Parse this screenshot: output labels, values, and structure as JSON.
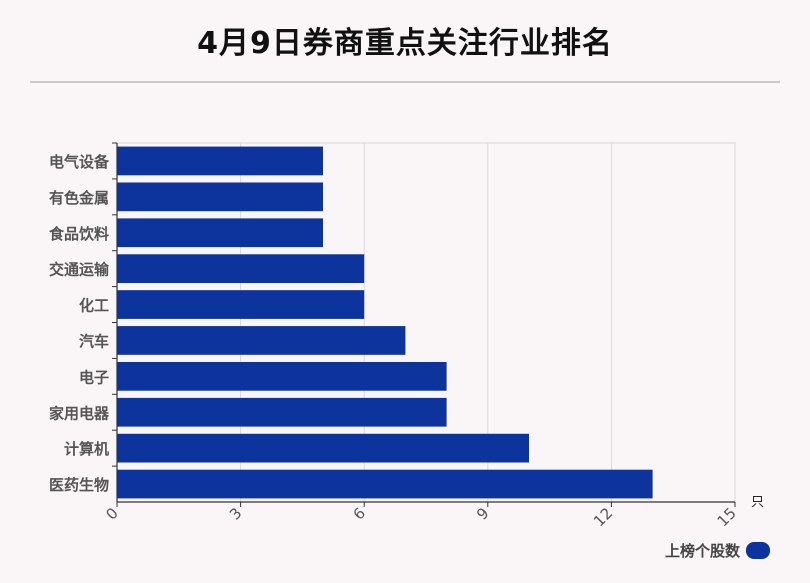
{
  "title": "4月9日券商重点关注行业排名",
  "colors": {
    "bar": "#0c349c",
    "grid": "#d9d9d9",
    "axis": "#555555"
  },
  "chart_data": {
    "type": "bar",
    "orientation": "horizontal",
    "categories": [
      "电气设备",
      "有色金属",
      "食品饮料",
      "交通运输",
      "化工",
      "汽车",
      "电子",
      "家用电器",
      "计算机",
      "医药生物"
    ],
    "series": [
      {
        "name": "上榜个股数",
        "values": [
          5,
          5,
          5,
          6,
          6,
          7,
          8,
          8,
          10,
          13
        ]
      }
    ],
    "xlim": [
      0,
      15
    ],
    "xticks": [
      0,
      3,
      6,
      9,
      12,
      15
    ],
    "xunit": "只",
    "grid": true,
    "legend": "bottom-right"
  }
}
